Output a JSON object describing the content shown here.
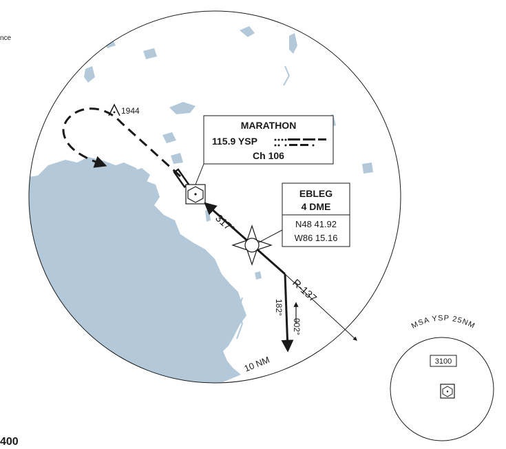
{
  "edge_text": {
    "top_left": "nce",
    "bottom_left": "400"
  },
  "obstacle": {
    "elevation": "1944"
  },
  "vor": {
    "name": "MARATHON",
    "frequency": "115.9 YSP",
    "channel": "Ch 106"
  },
  "fix": {
    "name": "EBLEG",
    "dme": "4 DME",
    "lat": "N48 41.92",
    "lon": "W86 15.16"
  },
  "courses": {
    "inbound": "317°",
    "radial": "R-137",
    "down": "182°",
    "up": "002°",
    "distance": "10 NM"
  },
  "msa": {
    "title": "MSA YSP 25NM",
    "altitude": "3100"
  },
  "colors": {
    "water": "#b3c9d9",
    "ink": "#1a1a1a"
  }
}
